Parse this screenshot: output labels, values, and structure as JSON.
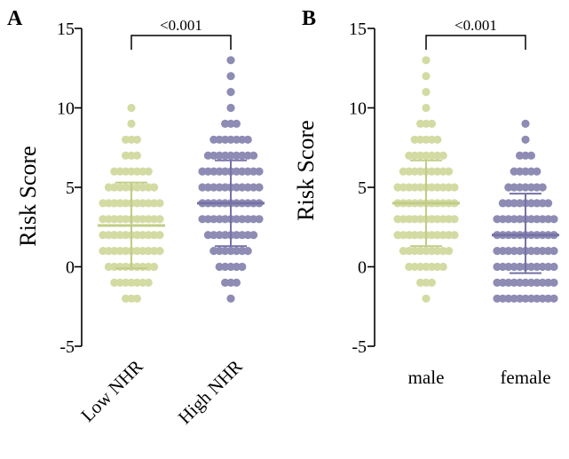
{
  "colors": {
    "group1": "#d3dba3",
    "group1_line": "#c2cc86",
    "group2": "#8e8bb4",
    "group2_line": "#7672a6",
    "axis": "#000000"
  },
  "chart_data": [
    {
      "type": "scatter",
      "subtype": "dot-plot",
      "panel_label": "A",
      "ylabel": "Risk Score",
      "ylim": [
        -5,
        15
      ],
      "yticks": [
        -5,
        0,
        5,
        10,
        15
      ],
      "categories": [
        "Low NHR",
        "High NHR"
      ],
      "category_label_rotation": "-45deg",
      "series": [
        {
          "category": "Low NHR",
          "values": [
            -2,
            -1,
            0,
            1,
            2,
            3,
            4,
            5,
            6,
            7,
            8,
            9,
            10
          ],
          "relative_spread": [
            0.25,
            0.55,
            0.85,
            1.0,
            1.0,
            1.0,
            0.95,
            0.8,
            0.55,
            0.35,
            0.2,
            0.12,
            0.05
          ],
          "mean": 2.6,
          "sd_low": -0.1,
          "sd_high": 5.3
        },
        {
          "category": "High NHR",
          "values": [
            -2,
            -1,
            0,
            1,
            2,
            3,
            4,
            5,
            6,
            7,
            8,
            9,
            10,
            11,
            12,
            13
          ],
          "relative_spread": [
            0.05,
            0.2,
            0.45,
            0.7,
            0.85,
            1.0,
            1.0,
            1.0,
            0.9,
            0.75,
            0.55,
            0.3,
            0.15,
            0.06,
            0.05,
            0.05
          ],
          "mean": 4.0,
          "sd_low": 1.3,
          "sd_high": 6.7
        }
      ],
      "annotation": {
        "text": "<0.001",
        "between": [
          "Low NHR",
          "High NHR"
        ]
      }
    },
    {
      "type": "scatter",
      "subtype": "dot-plot",
      "panel_label": "B",
      "ylabel": "Risk Score",
      "ylim": [
        -5,
        15
      ],
      "yticks": [
        -5,
        0,
        5,
        10,
        15
      ],
      "categories": [
        "male",
        "female"
      ],
      "category_label_rotation": "0deg",
      "series": [
        {
          "category": "male",
          "values": [
            -2,
            -1,
            0,
            1,
            2,
            3,
            4,
            5,
            6,
            7,
            8,
            9,
            10,
            11,
            12,
            13
          ],
          "relative_spread": [
            0.08,
            0.3,
            0.6,
            0.8,
            0.95,
            1.0,
            1.0,
            0.95,
            0.85,
            0.7,
            0.5,
            0.3,
            0.15,
            0.06,
            0.05,
            0.05
          ],
          "mean": 4.0,
          "sd_low": 1.3,
          "sd_high": 6.7
        },
        {
          "category": "female",
          "values": [
            -2,
            -1,
            0,
            1,
            2,
            3,
            4,
            5,
            6,
            7,
            8,
            9
          ],
          "relative_spread": [
            1.0,
            1.0,
            1.0,
            1.0,
            1.0,
            1.0,
            0.85,
            0.6,
            0.4,
            0.25,
            0.12,
            0.05
          ],
          "mean": 2.0,
          "sd_low": -0.4,
          "sd_high": 4.6
        }
      ],
      "annotation": {
        "text": "<0.001",
        "between": [
          "male",
          "female"
        ]
      }
    }
  ]
}
